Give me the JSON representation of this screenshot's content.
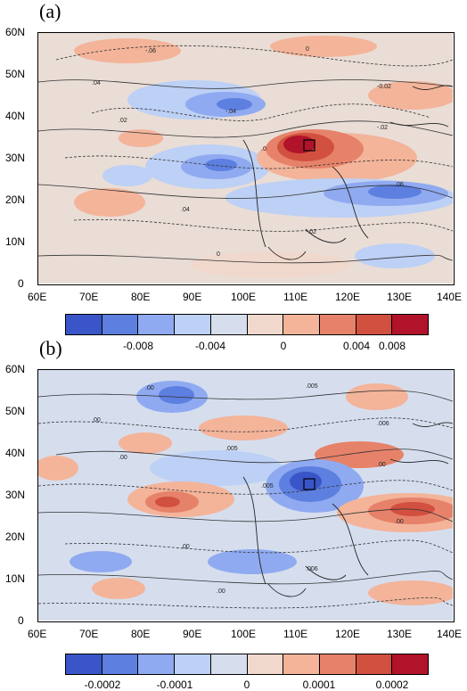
{
  "panels": [
    {
      "label": "(a)",
      "lat_ticks": [
        "60N",
        "50N",
        "40N",
        "30N",
        "20N",
        "10N",
        "0"
      ],
      "lon_ticks": [
        "60E",
        "70E",
        "80E",
        "90E",
        "100E",
        "110E",
        "120E",
        "130E",
        "140E"
      ],
      "colorbar_labels": [
        "-0.008",
        "-0.004",
        "0",
        "0.004",
        "0.008"
      ],
      "contour_labels": [
        "-.06",
        "0",
        ".04",
        "-0.02",
        ".02",
        "-.04",
        "-.02",
        ".0",
        ".06",
        ".04",
        "-.02",
        "0"
      ]
    },
    {
      "label": "(b)",
      "lat_ticks": [
        "60N",
        "50N",
        "40N",
        "30N",
        "20N",
        "10N",
        "0"
      ],
      "lon_ticks": [
        "60E",
        "70E",
        "80E",
        "90E",
        "100E",
        "110E",
        "120E",
        "130E",
        "140E"
      ],
      "colorbar_labels": [
        "-0.0002",
        "-0.0001",
        "0",
        "0.0001",
        "0.0002"
      ],
      "contour_labels": [
        ".00",
        ".005",
        ".00",
        ".006",
        ".00",
        ".005",
        ".00",
        ".005",
        ".00",
        ".00",
        ".006",
        ".00"
      ]
    }
  ],
  "colorbar_colors": [
    "#3a55c8",
    "#5d7fe0",
    "#8faaf0",
    "#bdd0f5",
    "#d6deee",
    "#f0d8cc",
    "#f3b49a",
    "#e6826a",
    "#d2503f",
    "#b0132a"
  ],
  "map_colors": {
    "background": "#dfd7d4",
    "strong_positive": "#b0132a",
    "positive": "#e6826a",
    "weak_positive": "#f3b49a",
    "weak_negative": "#bdd0f5",
    "negative": "#8faaf0",
    "strong_negative": "#3a55c8"
  }
}
